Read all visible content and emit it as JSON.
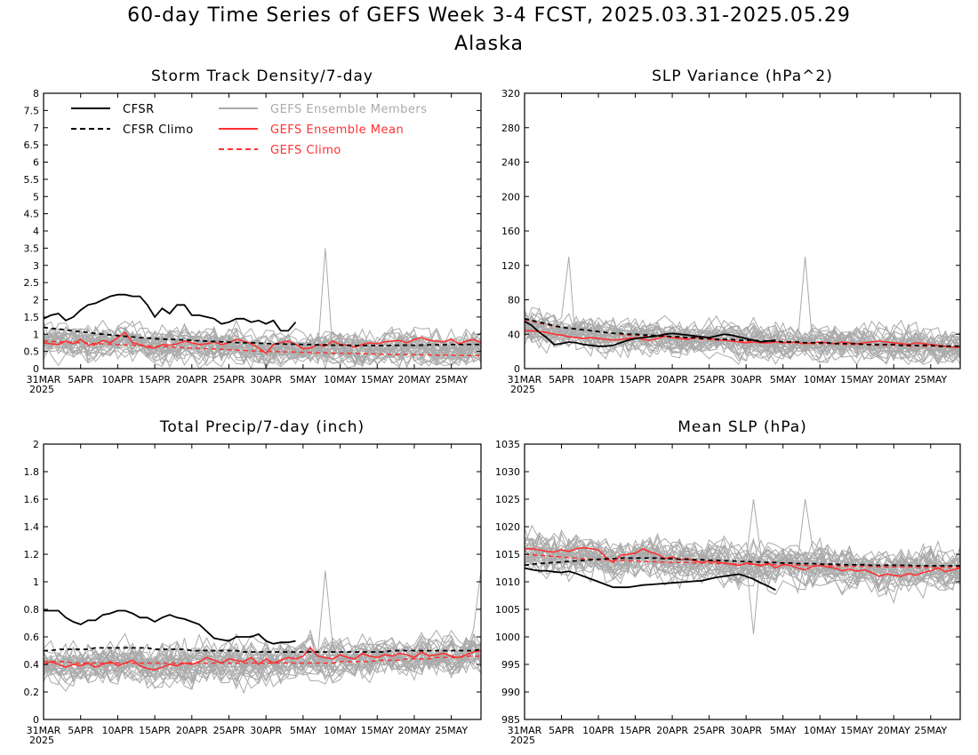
{
  "title": "60-day Time Series of GEFS Week 3-4 FCST, 2025.03.31-2025.05.29",
  "subtitle": "Alaska",
  "colors": {
    "cfsr": "#000000",
    "member": "#aaaaaa",
    "mean": "#ff3030"
  },
  "legend": {
    "cfsr": "CFSR",
    "cfsr_climo": "CFSR Climo",
    "members": "GEFS Ensemble Members",
    "mean": "GEFS Ensemble Mean",
    "climo": "GEFS Climo"
  },
  "x_ticks": [
    "31MAR",
    "5APR",
    "10APR",
    "15APR",
    "20APR",
    "25APR",
    "30APR",
    "5MAY",
    "10MAY",
    "15MAY",
    "20MAY",
    "25MAY"
  ],
  "x_year": "2025",
  "chart_data": [
    {
      "type": "line",
      "title": "Storm Track Density/7-day",
      "ylim": [
        0,
        8
      ],
      "yticks": [
        "0",
        "0.5",
        "1",
        "1.5",
        "2",
        "2.5",
        "3",
        "3.5",
        "4",
        "4.5",
        "5",
        "5.5",
        "6",
        "6.5",
        "7",
        "7.5",
        "8"
      ],
      "cfsr": [
        1.45,
        1.55,
        1.6,
        1.4,
        1.5,
        1.7,
        1.85,
        1.9,
        2.0,
        2.1,
        2.15,
        2.15,
        2.1,
        2.1,
        1.85,
        1.5,
        1.75,
        1.6,
        1.85,
        1.85,
        1.55,
        1.55,
        1.5,
        1.45,
        1.3,
        1.35,
        1.45,
        1.45,
        1.35,
        1.4,
        1.3,
        1.4,
        1.1,
        1.1,
        1.35
      ],
      "cfsr_climo": [
        1.2,
        1.17,
        1.15,
        1.12,
        1.1,
        1.07,
        1.05,
        1.02,
        1.0,
        0.98,
        0.96,
        0.94,
        0.92,
        0.9,
        0.89,
        0.87,
        0.86,
        0.85,
        0.84,
        0.83,
        0.82,
        0.81,
        0.8,
        0.79,
        0.78,
        0.77,
        0.76,
        0.75,
        0.75,
        0.74,
        0.73,
        0.72,
        0.72,
        0.71,
        0.71,
        0.7,
        0.7,
        0.69,
        0.69,
        0.68,
        0.68,
        0.68,
        0.67,
        0.67,
        0.67,
        0.67,
        0.67,
        0.67,
        0.68,
        0.68,
        0.68,
        0.68,
        0.69,
        0.69,
        0.69,
        0.7,
        0.7,
        0.7,
        0.7,
        0.7
      ],
      "mean": [
        0.75,
        0.72,
        0.7,
        0.8,
        0.72,
        0.85,
        0.68,
        0.7,
        0.82,
        0.75,
        0.9,
        1.05,
        0.75,
        0.7,
        0.62,
        0.6,
        0.7,
        0.68,
        0.72,
        0.8,
        0.75,
        0.7,
        0.72,
        0.78,
        0.7,
        0.75,
        0.85,
        0.8,
        0.72,
        0.6,
        0.45,
        0.7,
        0.75,
        0.8,
        0.7,
        0.58,
        0.6,
        0.7,
        0.65,
        0.8,
        0.7,
        0.68,
        0.62,
        0.7,
        0.75,
        0.72,
        0.78,
        0.8,
        0.82,
        0.75,
        0.85,
        0.9,
        0.82,
        0.8,
        0.78,
        0.85,
        0.72,
        0.8,
        0.85,
        0.75
      ],
      "climo": [
        0.8,
        0.79,
        0.78,
        0.77,
        0.76,
        0.75,
        0.74,
        0.73,
        0.72,
        0.71,
        0.7,
        0.69,
        0.68,
        0.67,
        0.66,
        0.65,
        0.64,
        0.63,
        0.62,
        0.61,
        0.6,
        0.59,
        0.58,
        0.57,
        0.56,
        0.55,
        0.54,
        0.53,
        0.52,
        0.51,
        0.5,
        0.5,
        0.49,
        0.48,
        0.48,
        0.47,
        0.47,
        0.46,
        0.46,
        0.45,
        0.45,
        0.44,
        0.44,
        0.43,
        0.43,
        0.42,
        0.42,
        0.41,
        0.41,
        0.41,
        0.4,
        0.4,
        0.4,
        0.39,
        0.39,
        0.39,
        0.38,
        0.38,
        0.38,
        0.38
      ],
      "members": {
        "count": 31,
        "center": 0.8,
        "spread": 0.55,
        "peak": 3.5,
        "floor": 0
      }
    },
    {
      "type": "line",
      "title": "SLP Variance (hPa^2)",
      "ylim": [
        0,
        320
      ],
      "yticks": [
        "0",
        "40",
        "80",
        "120",
        "160",
        "200",
        "240",
        "280",
        "320"
      ],
      "cfsr": [
        55,
        50,
        42,
        36,
        28,
        29,
        31,
        30,
        28,
        27,
        26,
        26,
        27,
        30,
        33,
        35,
        36,
        37,
        38,
        40,
        41,
        40,
        39,
        38,
        37,
        36,
        38,
        40,
        39,
        37,
        35,
        33,
        31,
        32,
        33
      ],
      "cfsr_climo": [
        58,
        56,
        54,
        52,
        50,
        48,
        47,
        46,
        45,
        44,
        43,
        42,
        41,
        41,
        40,
        40,
        39,
        39,
        38,
        38,
        37,
        37,
        36,
        36,
        35,
        35,
        34,
        34,
        34,
        33,
        33,
        33,
        32,
        32,
        32,
        31,
        31,
        31,
        30,
        30,
        30,
        30,
        29,
        29,
        29,
        29,
        28,
        28,
        28,
        28,
        28,
        27,
        27,
        27,
        27,
        27,
        26,
        26,
        26,
        26
      ],
      "mean": [
        44,
        44,
        43,
        42,
        40,
        39,
        37,
        36,
        35,
        36,
        35,
        34,
        33,
        34,
        35,
        36,
        34,
        33,
        35,
        38,
        36,
        35,
        34,
        36,
        37,
        35,
        34,
        33,
        32,
        31,
        30,
        31,
        30,
        30,
        31,
        30,
        31,
        30,
        29,
        30,
        31,
        30,
        29,
        31,
        30,
        29,
        30,
        31,
        32,
        31,
        30,
        29,
        28,
        30,
        29,
        28,
        27,
        26,
        25,
        25
      ],
      "climo": [
        57,
        55,
        53,
        51,
        49,
        48,
        47,
        46,
        45,
        44,
        43,
        42,
        41,
        40,
        39,
        39,
        38,
        38,
        37,
        37,
        36,
        36,
        35,
        35,
        34,
        34,
        33,
        33,
        33,
        32,
        32,
        32,
        31,
        31,
        31,
        30,
        30,
        30,
        30,
        29,
        29,
        29,
        29,
        28,
        28,
        28,
        28,
        27,
        27,
        27,
        27,
        27,
        26,
        26,
        26,
        26,
        26,
        25,
        25,
        25
      ],
      "members": {
        "count": 31,
        "center": 35,
        "spread": 22,
        "peak": 130,
        "floor": 5
      }
    },
    {
      "type": "line",
      "title": "Total Precip/7-day (inch)",
      "ylim": [
        0,
        2
      ],
      "yticks": [
        "0",
        "0.2",
        "0.4",
        "0.6",
        "0.8",
        "1",
        "1.2",
        "1.4",
        "1.6",
        "1.8",
        "2"
      ],
      "cfsr": [
        0.79,
        0.79,
        0.79,
        0.74,
        0.71,
        0.69,
        0.72,
        0.72,
        0.76,
        0.77,
        0.79,
        0.79,
        0.77,
        0.74,
        0.74,
        0.71,
        0.74,
        0.76,
        0.74,
        0.73,
        0.71,
        0.69,
        0.64,
        0.59,
        0.58,
        0.57,
        0.6,
        0.6,
        0.6,
        0.62,
        0.57,
        0.55,
        0.56,
        0.56,
        0.57
      ],
      "cfsr_climo": [
        0.5,
        0.5,
        0.51,
        0.51,
        0.51,
        0.51,
        0.51,
        0.52,
        0.52,
        0.52,
        0.52,
        0.52,
        0.52,
        0.52,
        0.52,
        0.51,
        0.51,
        0.51,
        0.51,
        0.51,
        0.5,
        0.5,
        0.5,
        0.5,
        0.5,
        0.5,
        0.5,
        0.49,
        0.49,
        0.49,
        0.49,
        0.49,
        0.49,
        0.49,
        0.49,
        0.49,
        0.49,
        0.49,
        0.49,
        0.49,
        0.49,
        0.49,
        0.49,
        0.49,
        0.49,
        0.49,
        0.49,
        0.5,
        0.5,
        0.5,
        0.5,
        0.5,
        0.5,
        0.5,
        0.5,
        0.5,
        0.5,
        0.5,
        0.5,
        0.51
      ],
      "mean": [
        0.4,
        0.42,
        0.4,
        0.38,
        0.4,
        0.39,
        0.41,
        0.38,
        0.4,
        0.42,
        0.39,
        0.41,
        0.43,
        0.39,
        0.37,
        0.36,
        0.38,
        0.4,
        0.39,
        0.41,
        0.4,
        0.42,
        0.45,
        0.43,
        0.41,
        0.44,
        0.43,
        0.42,
        0.45,
        0.4,
        0.44,
        0.41,
        0.43,
        0.45,
        0.44,
        0.46,
        0.52,
        0.46,
        0.45,
        0.44,
        0.47,
        0.45,
        0.44,
        0.48,
        0.46,
        0.45,
        0.47,
        0.46,
        0.48,
        0.47,
        0.45,
        0.49,
        0.46,
        0.47,
        0.48,
        0.46,
        0.45,
        0.47,
        0.49,
        0.5
      ],
      "climo": [
        0.42,
        0.42,
        0.42,
        0.42,
        0.41,
        0.41,
        0.41,
        0.41,
        0.41,
        0.41,
        0.41,
        0.41,
        0.41,
        0.41,
        0.41,
        0.41,
        0.41,
        0.41,
        0.41,
        0.41,
        0.41,
        0.41,
        0.41,
        0.41,
        0.41,
        0.41,
        0.41,
        0.41,
        0.41,
        0.41,
        0.41,
        0.41,
        0.41,
        0.41,
        0.41,
        0.41,
        0.41,
        0.41,
        0.41,
        0.41,
        0.42,
        0.42,
        0.42,
        0.42,
        0.42,
        0.43,
        0.43,
        0.43,
        0.43,
        0.44,
        0.44,
        0.44,
        0.44,
        0.45,
        0.45,
        0.45,
        0.45,
        0.46,
        0.46,
        0.46
      ],
      "members": {
        "count": 31,
        "center": 0.42,
        "spread": 0.16,
        "peak": 1.08,
        "floor": 0.05
      }
    },
    {
      "type": "line",
      "title": "Mean SLP (hPa)",
      "ylim": [
        985,
        1035
      ],
      "yticks": [
        "985",
        "990",
        "995",
        "1000",
        "1005",
        "1010",
        "1015",
        "1020",
        "1025",
        "1030",
        "1035"
      ],
      "cfsr": [
        1012.5,
        1012.2,
        1012,
        1012,
        1011.8,
        1011.7,
        1011.9,
        1011.5,
        1011,
        1010.5,
        1010,
        1009.5,
        1009,
        1009,
        1009,
        1009.2,
        1009.4,
        1009.5,
        1009.6,
        1009.7,
        1009.8,
        1009.9,
        1010,
        1010.1,
        1010.2,
        1010.5,
        1010.8,
        1011,
        1011.2,
        1011.4,
        1011,
        1010.5,
        1009.8,
        1009.2,
        1008.5
      ],
      "cfsr_climo": [
        1013,
        1013.2,
        1013.3,
        1013.4,
        1013.5,
        1013.6,
        1013.7,
        1013.8,
        1013.9,
        1014,
        1014.1,
        1014.2,
        1014.2,
        1014.3,
        1014.3,
        1014.3,
        1014.3,
        1014.3,
        1014.3,
        1014.2,
        1014.2,
        1014.1,
        1014.1,
        1014,
        1014,
        1013.9,
        1013.9,
        1013.8,
        1013.8,
        1013.7,
        1013.7,
        1013.6,
        1013.6,
        1013.5,
        1013.5,
        1013.4,
        1013.4,
        1013.3,
        1013.3,
        1013.3,
        1013.2,
        1013.2,
        1013.2,
        1013.1,
        1013.1,
        1013.1,
        1013.1,
        1013,
        1013,
        1013,
        1013,
        1013,
        1013,
        1012.9,
        1012.9,
        1012.9,
        1012.9,
        1012.9,
        1012.9,
        1012.9
      ],
      "mean": [
        1016,
        1016,
        1015.8,
        1015.5,
        1015.4,
        1015.8,
        1015.5,
        1016,
        1016.2,
        1016,
        1015.8,
        1014.5,
        1013.5,
        1014.8,
        1015,
        1015.2,
        1016,
        1015.4,
        1015,
        1014.2,
        1014.5,
        1014,
        1014.2,
        1013.8,
        1013.5,
        1013.8,
        1013.6,
        1013.4,
        1013.2,
        1013,
        1013.4,
        1013.2,
        1012.9,
        1013.4,
        1012.5,
        1013.2,
        1013,
        1012.5,
        1012.2,
        1012.8,
        1013,
        1012.7,
        1012.5,
        1012,
        1012.3,
        1011.9,
        1012.2,
        1011.7,
        1011,
        1011.4,
        1011.2,
        1011,
        1011.5,
        1011.2,
        1011.7,
        1012,
        1012.5,
        1011.8,
        1012.2,
        1012.5
      ],
      "climo": [
        1015,
        1014.9,
        1014.8,
        1014.7,
        1014.6,
        1014.5,
        1014.4,
        1014.3,
        1014.2,
        1014.1,
        1014,
        1014,
        1013.9,
        1013.9,
        1013.8,
        1013.8,
        1013.7,
        1013.7,
        1013.6,
        1013.6,
        1013.5,
        1013.5,
        1013.5,
        1013.4,
        1013.4,
        1013.4,
        1013.3,
        1013.3,
        1013.3,
        1013.2,
        1013.2,
        1013.2,
        1013.1,
        1013.1,
        1013.1,
        1013,
        1013,
        1013,
        1013,
        1012.9,
        1012.9,
        1012.9,
        1012.9,
        1012.8,
        1012.8,
        1012.8,
        1012.8,
        1012.8,
        1012.7,
        1012.7,
        1012.7,
        1012.7,
        1012.7,
        1012.6,
        1012.6,
        1012.6,
        1012.6,
        1012.6,
        1012.6,
        1012.6
      ],
      "members": {
        "count": 31,
        "center": 1013.3,
        "spread": 4.2,
        "peak": 1025,
        "floor": 1000.5
      }
    }
  ]
}
